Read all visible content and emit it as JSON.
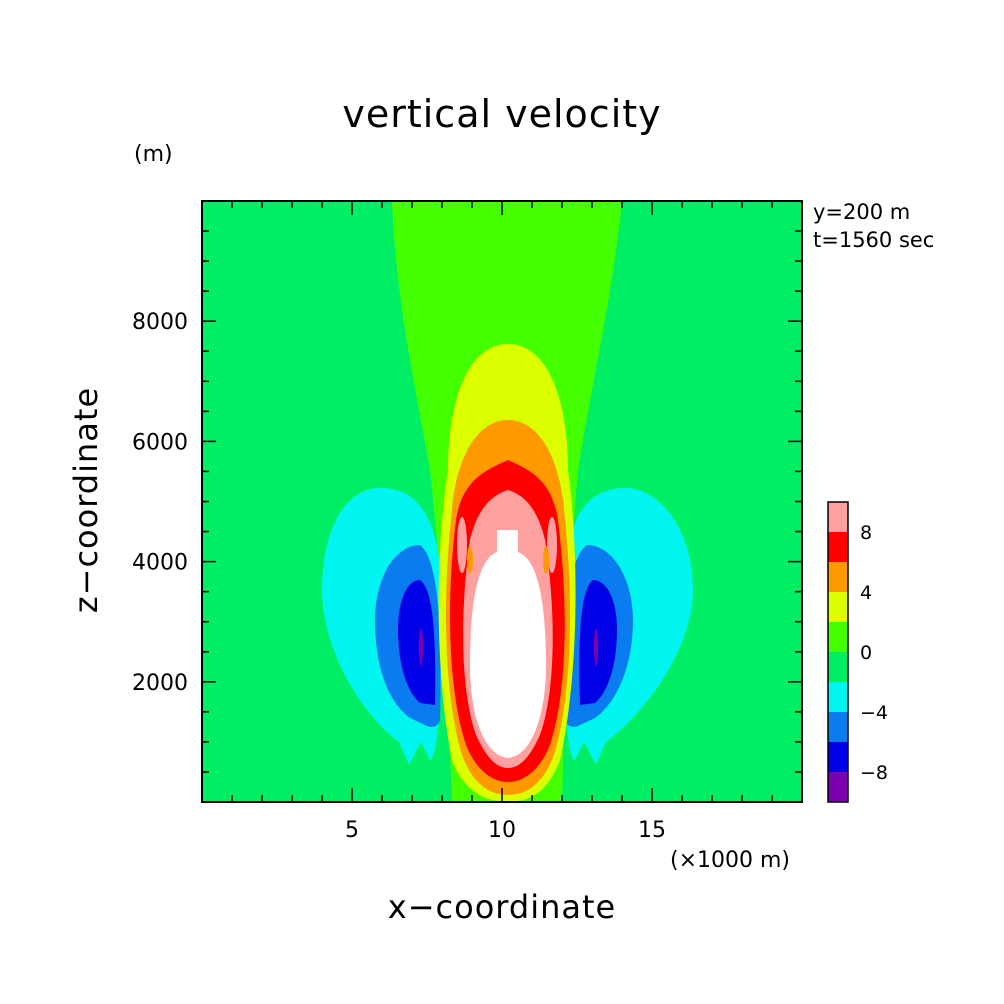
{
  "chart_data": {
    "type": "heatmap",
    "subtype": "filled-contour",
    "title": "vertical velocity",
    "xlabel": "x−coordinate",
    "ylabel": "z−coordinate",
    "x_unit_label": "(×1000 m)",
    "y_unit_label": "(m)",
    "info": [
      "y=200 m",
      "t=1560 sec"
    ],
    "xlim": [
      0,
      20
    ],
    "ylim": [
      0,
      10000
    ],
    "x_tick_labels": [
      {
        "value": 5,
        "label": "5"
      },
      {
        "value": 10,
        "label": "10"
      },
      {
        "value": 15,
        "label": "15"
      }
    ],
    "y_tick_labels": [
      {
        "value": 2000,
        "label": "2000"
      },
      {
        "value": 4000,
        "label": "4000"
      },
      {
        "value": 6000,
        "label": "6000"
      },
      {
        "value": 8000,
        "label": "8000"
      }
    ],
    "colorbar": {
      "levels": [
        {
          "range": [
            -10,
            -8
          ],
          "color": "#7b00b0"
        },
        {
          "range": [
            -8,
            -6
          ],
          "color": "#0000e6"
        },
        {
          "range": [
            -6,
            -4
          ],
          "color": "#0a7cf0"
        },
        {
          "range": [
            -4,
            -2
          ],
          "color": "#00f5f0"
        },
        {
          "range": [
            -2,
            0
          ],
          "color": "#00ee64"
        },
        {
          "range": [
            0,
            2
          ],
          "color": "#44ff00"
        },
        {
          "range": [
            2,
            4
          ],
          "color": "#dcff00"
        },
        {
          "range": [
            4,
            6
          ],
          "color": "#ff9900"
        },
        {
          "range": [
            6,
            8
          ],
          "color": "#ff0000"
        },
        {
          "range": [
            8,
            10
          ],
          "color": "#ffa0a0"
        }
      ],
      "tick_labels": [
        {
          "value": -8,
          "label": "−8"
        },
        {
          "value": -4,
          "label": "−4"
        },
        {
          "value": 0,
          "label": "0"
        },
        {
          "value": 4,
          "label": "4"
        },
        {
          "value": 8,
          "label": "8"
        }
      ]
    },
    "above_range_color": "#ffffff",
    "features": [
      {
        "kind": "updraft",
        "x_center": 10,
        "z_center": 3200,
        "w_max": 10
      },
      {
        "kind": "downdraft",
        "x_center": 7.3,
        "z_center": 2800,
        "w_min": -9
      },
      {
        "kind": "downdraft",
        "x_center": 13,
        "z_center": 2800,
        "w_min": -9
      }
    ]
  }
}
